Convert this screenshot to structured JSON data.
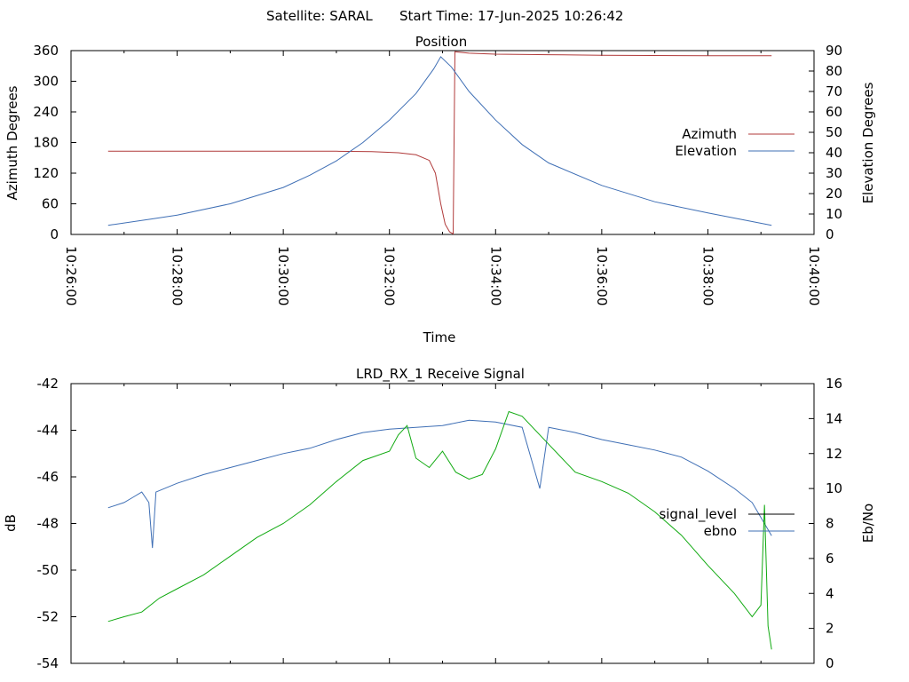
{
  "header": {
    "satellite_label": "Satellite: SARAL",
    "start_label": "Start Time: 17-Jun-2025 10:26:42"
  },
  "chart_data": [
    {
      "type": "line",
      "title": "Position",
      "xlabel": "Time",
      "ylabel": "Azimuth Degrees",
      "y2label": "Elevation Degrees",
      "xlim": [
        "10:26:00",
        "10:40:00"
      ],
      "ylim": [
        0,
        360
      ],
      "y2lim": [
        0,
        90
      ],
      "xticks": [
        "10:26:00",
        "10:28:00",
        "10:30:00",
        "10:32:00",
        "10:34:00",
        "10:36:00",
        "10:38:00",
        "10:40:00"
      ],
      "yticks": [
        "0",
        "60",
        "120",
        "180",
        "240",
        "300",
        "360"
      ],
      "y2ticks": [
        "0",
        "10",
        "20",
        "30",
        "40",
        "50",
        "60",
        "70",
        "80",
        "90"
      ],
      "legend": "right",
      "grid": false,
      "series": [
        {
          "name": "Azimuth",
          "axis": "y",
          "color": "#b03a3a",
          "points": [
            [
              "10:26:42",
              163
            ],
            [
              "10:28:00",
              163
            ],
            [
              "10:30:00",
              163
            ],
            [
              "10:31:00",
              163
            ],
            [
              "10:31:40",
              162
            ],
            [
              "10:32:10",
              160
            ],
            [
              "10:32:30",
              156
            ],
            [
              "10:32:45",
              145
            ],
            [
              "10:32:52",
              120
            ],
            [
              "10:32:58",
              60
            ],
            [
              "10:33:03",
              20
            ],
            [
              "10:33:08",
              5
            ],
            [
              "10:33:12",
              1
            ],
            [
              "10:33:13",
              180
            ],
            [
              "10:33:14",
              358
            ],
            [
              "10:33:30",
              355
            ],
            [
              "10:34:00",
              353
            ],
            [
              "10:35:00",
              352
            ],
            [
              "10:36:00",
              351
            ],
            [
              "10:38:00",
              350
            ],
            [
              "10:39:12",
              350
            ]
          ]
        },
        {
          "name": "Elevation",
          "axis": "y2",
          "color": "#3f6fb5",
          "points": [
            [
              "10:26:42",
              4.5
            ],
            [
              "10:27:30",
              7.5
            ],
            [
              "10:28:00",
              9.5
            ],
            [
              "10:29:00",
              15
            ],
            [
              "10:30:00",
              23
            ],
            [
              "10:30:30",
              29
            ],
            [
              "10:31:00",
              36
            ],
            [
              "10:31:30",
              45
            ],
            [
              "10:32:00",
              56
            ],
            [
              "10:32:30",
              69
            ],
            [
              "10:32:50",
              81
            ],
            [
              "10:32:58",
              87
            ],
            [
              "10:33:10",
              82
            ],
            [
              "10:33:30",
              70
            ],
            [
              "10:34:00",
              56
            ],
            [
              "10:34:30",
              44
            ],
            [
              "10:35:00",
              35
            ],
            [
              "10:36:00",
              24
            ],
            [
              "10:37:00",
              16
            ],
            [
              "10:38:00",
              10.5
            ],
            [
              "10:39:12",
              4.5
            ]
          ]
        }
      ]
    },
    {
      "type": "line",
      "title": "LRD_RX_1 Receive Signal",
      "ylabel": "dB",
      "y2label": "Eb/No",
      "xlim": [
        "10:26:00",
        "10:40:00"
      ],
      "ylim": [
        -54,
        -42
      ],
      "y2lim": [
        0,
        16
      ],
      "yticks": [
        "-54",
        "-52",
        "-50",
        "-48",
        "-46",
        "-44",
        "-42"
      ],
      "y2ticks": [
        "0",
        "2",
        "4",
        "6",
        "8",
        "10",
        "12",
        "14",
        "16"
      ],
      "legend": "right",
      "grid": false,
      "series": [
        {
          "name": "signal_level",
          "axis": "y",
          "color": "#000000",
          "legend_only": true,
          "points": []
        },
        {
          "name": "ebno",
          "axis": "y2",
          "color": "#3f6fb5",
          "points": [
            [
              "10:26:42",
              8.9
            ],
            [
              "10:27:00",
              9.2
            ],
            [
              "10:27:10",
              9.5
            ],
            [
              "10:27:20",
              9.8
            ],
            [
              "10:27:28",
              9.2
            ],
            [
              "10:27:32",
              6.6
            ],
            [
              "10:27:36",
              9.8
            ],
            [
              "10:28:00",
              10.3
            ],
            [
              "10:28:30",
              10.8
            ],
            [
              "10:29:00",
              11.2
            ],
            [
              "10:29:30",
              11.6
            ],
            [
              "10:30:00",
              12.0
            ],
            [
              "10:30:30",
              12.3
            ],
            [
              "10:31:00",
              12.8
            ],
            [
              "10:31:30",
              13.2
            ],
            [
              "10:32:00",
              13.4
            ],
            [
              "10:32:30",
              13.5
            ],
            [
              "10:33:00",
              13.6
            ],
            [
              "10:33:30",
              13.9
            ],
            [
              "10:34:00",
              13.8
            ],
            [
              "10:34:30",
              13.5
            ],
            [
              "10:34:50",
              10.0
            ],
            [
              "10:35:00",
              13.5
            ],
            [
              "10:35:30",
              13.2
            ],
            [
              "10:36:00",
              12.8
            ],
            [
              "10:36:30",
              12.5
            ],
            [
              "10:37:00",
              12.2
            ],
            [
              "10:37:30",
              11.8
            ],
            [
              "10:38:00",
              11.0
            ],
            [
              "10:38:30",
              10.0
            ],
            [
              "10:38:50",
              9.2
            ],
            [
              "10:39:12",
              7.3
            ]
          ]
        },
        {
          "name": "",
          "axis": "y",
          "color": "#11aa11",
          "legend_only": false,
          "points": [
            [
              "10:26:42",
              -52.2
            ],
            [
              "10:27:00",
              -52.0
            ],
            [
              "10:27:20",
              -51.8
            ],
            [
              "10:27:40",
              -51.2
            ],
            [
              "10:28:00",
              -50.8
            ],
            [
              "10:28:30",
              -50.2
            ],
            [
              "10:29:00",
              -49.4
            ],
            [
              "10:29:30",
              -48.6
            ],
            [
              "10:30:00",
              -48.0
            ],
            [
              "10:30:30",
              -47.2
            ],
            [
              "10:31:00",
              -46.2
            ],
            [
              "10:31:30",
              -45.3
            ],
            [
              "10:32:00",
              -44.9
            ],
            [
              "10:32:10",
              -44.2
            ],
            [
              "10:32:20",
              -43.8
            ],
            [
              "10:32:30",
              -45.2
            ],
            [
              "10:32:45",
              -45.6
            ],
            [
              "10:33:00",
              -44.9
            ],
            [
              "10:33:15",
              -45.8
            ],
            [
              "10:33:30",
              -46.1
            ],
            [
              "10:33:45",
              -45.9
            ],
            [
              "10:34:00",
              -44.8
            ],
            [
              "10:34:15",
              -43.2
            ],
            [
              "10:34:30",
              -43.4
            ],
            [
              "10:35:00",
              -44.6
            ],
            [
              "10:35:30",
              -45.8
            ],
            [
              "10:36:00",
              -46.2
            ],
            [
              "10:36:30",
              -46.7
            ],
            [
              "10:37:00",
              -47.5
            ],
            [
              "10:37:30",
              -48.5
            ],
            [
              "10:38:00",
              -49.8
            ],
            [
              "10:38:30",
              -51.0
            ],
            [
              "10:38:50",
              -52.0
            ],
            [
              "10:39:00",
              -51.5
            ],
            [
              "10:39:04",
              -47.2
            ],
            [
              "10:39:08",
              -52.4
            ],
            [
              "10:39:12",
              -53.4
            ]
          ]
        }
      ]
    }
  ]
}
